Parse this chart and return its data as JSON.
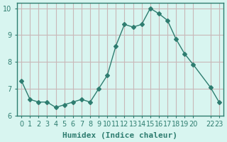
{
  "x": [
    0,
    1,
    2,
    3,
    4,
    5,
    6,
    7,
    8,
    9,
    10,
    11,
    12,
    13,
    14,
    15,
    16,
    17,
    18,
    19,
    20,
    22,
    23
  ],
  "y": [
    7.3,
    6.6,
    6.5,
    6.5,
    6.3,
    6.4,
    6.5,
    6.6,
    6.5,
    7.0,
    7.5,
    8.6,
    9.4,
    9.3,
    9.4,
    10.0,
    9.8,
    9.55,
    8.85,
    8.3,
    7.9,
    7.05,
    6.5
  ],
  "line_color": "#2e7d70",
  "marker": "D",
  "marker_size": 3,
  "bg_color": "#d8f5f0",
  "grid_color": "#c8b8b8",
  "xlabel": "Humidex (Indice chaleur)",
  "ylim": [
    6.0,
    10.2
  ],
  "xlim": [
    -0.5,
    23.5
  ],
  "yticks": [
    6,
    7,
    8,
    9,
    10
  ],
  "xtick_positions": [
    0,
    1,
    2,
    3,
    4,
    5,
    6,
    7,
    8,
    9,
    10,
    11,
    12,
    13,
    14,
    15,
    16,
    17,
    18,
    19,
    20,
    22,
    23
  ],
  "xtick_labels": [
    "0",
    "1",
    "2",
    "3",
    "4",
    "5",
    "6",
    "7",
    "8",
    "9",
    "10",
    "11",
    "12",
    "13",
    "14",
    "15",
    "16",
    "17",
    "18",
    "19",
    "20",
    "22",
    "23"
  ],
  "tick_fontsize": 7,
  "label_fontsize": 8
}
